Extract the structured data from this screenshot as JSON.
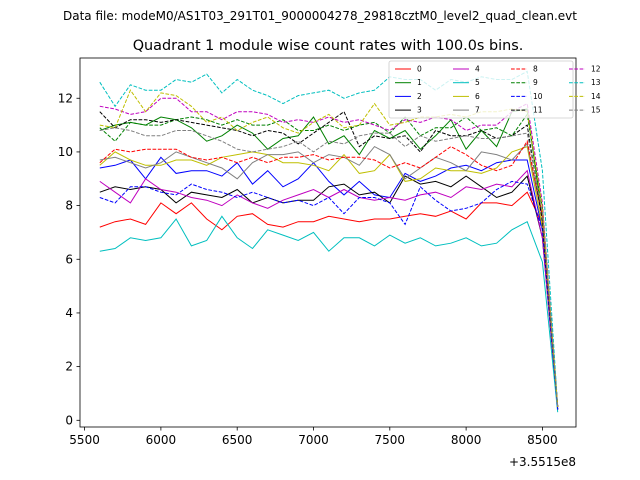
{
  "header": {
    "data_file": "Data file: modeM0/AS1T03_291T01_9000004278_29818cztM0_level2_quad_clean.evt"
  },
  "chart_data": {
    "type": "line",
    "title": "Quadrant 1 module wise count rates with 100.0s bins.",
    "xlabel": "",
    "ylabel": "",
    "x_offset_label": "+3.5515e8",
    "xlim": [
      5470,
      8720
    ],
    "ylim": [
      -0.25,
      13.5
    ],
    "xticks": [
      5500,
      6000,
      6500,
      7000,
      7500,
      8000,
      8500
    ],
    "yticks": [
      0,
      2,
      4,
      6,
      8,
      10,
      12
    ],
    "grid": false,
    "legend_position": "top-right",
    "x": [
      5600,
      5700,
      5800,
      5900,
      6000,
      6100,
      6200,
      6300,
      6400,
      6500,
      6600,
      6700,
      6800,
      6900,
      7000,
      7100,
      7200,
      7300,
      7400,
      7500,
      7600,
      7700,
      7800,
      7900,
      8000,
      8100,
      8200,
      8300,
      8400,
      8500,
      8600
    ],
    "series": [
      {
        "name": "0",
        "color": "#ff0000",
        "dash": "solid",
        "values": [
          7.2,
          7.4,
          7.5,
          7.3,
          8.1,
          7.7,
          8.1,
          7.5,
          7.1,
          7.6,
          7.7,
          7.3,
          7.2,
          7.4,
          7.4,
          7.6,
          7.5,
          7.4,
          7.5,
          7.5,
          7.6,
          7.7,
          7.6,
          7.8,
          7.5,
          8.1,
          8.1,
          8.0,
          8.5,
          7.3,
          0.4
        ]
      },
      {
        "name": "1",
        "color": "#008000",
        "dash": "solid",
        "values": [
          10.8,
          11.0,
          11.1,
          11.0,
          11.3,
          11.2,
          10.9,
          10.4,
          10.6,
          11.0,
          10.7,
          10.1,
          10.5,
          10.6,
          11.3,
          10.3,
          10.6,
          9.9,
          10.8,
          10.5,
          10.8,
          10.1,
          10.6,
          11.2,
          10.1,
          10.8,
          10.2,
          11.5,
          11.6,
          7.5,
          0.5
        ]
      },
      {
        "name": "2",
        "color": "#0000ff",
        "dash": "solid",
        "values": [
          9.4,
          9.5,
          9.7,
          9.0,
          9.8,
          9.2,
          9.3,
          9.3,
          9.1,
          9.6,
          8.8,
          9.3,
          8.7,
          9.0,
          9.6,
          8.9,
          8.4,
          8.9,
          8.4,
          8.3,
          9.2,
          8.9,
          9.1,
          9.4,
          9.5,
          9.3,
          9.6,
          9.7,
          9.7,
          7.1,
          0.4
        ]
      },
      {
        "name": "3",
        "color": "#000000",
        "dash": "solid",
        "values": [
          8.5,
          8.7,
          8.6,
          8.7,
          8.6,
          8.1,
          8.5,
          8.4,
          8.3,
          8.6,
          8.1,
          8.3,
          8.1,
          8.2,
          8.2,
          8.7,
          8.8,
          8.4,
          8.5,
          8.1,
          9.1,
          8.8,
          8.9,
          8.7,
          9.1,
          8.7,
          8.3,
          8.5,
          9.1,
          6.8,
          0.4
        ]
      },
      {
        "name": "4",
        "color": "#bf00bf",
        "dash": "solid",
        "values": [
          8.9,
          8.5,
          8.1,
          9.0,
          8.6,
          8.5,
          8.3,
          8.2,
          8.0,
          8.4,
          8.1,
          7.9,
          8.2,
          8.4,
          8.6,
          8.3,
          8.6,
          8.3,
          8.2,
          8.3,
          8.2,
          8.4,
          8.5,
          8.3,
          8.7,
          8.6,
          8.8,
          8.7,
          9.3,
          6.8,
          0.4
        ]
      },
      {
        "name": "5",
        "color": "#00bfbf",
        "dash": "solid",
        "values": [
          6.3,
          6.4,
          6.8,
          6.7,
          6.8,
          7.5,
          6.5,
          6.7,
          7.6,
          6.8,
          6.4,
          7.1,
          6.9,
          6.7,
          7.0,
          6.3,
          6.8,
          6.8,
          6.5,
          6.9,
          6.6,
          6.8,
          6.5,
          6.6,
          6.8,
          6.5,
          6.6,
          7.1,
          7.4,
          5.9,
          0.3
        ]
      },
      {
        "name": "6",
        "color": "#bfbf00",
        "dash": "solid",
        "values": [
          9.5,
          10.0,
          9.7,
          9.5,
          9.5,
          9.7,
          9.7,
          9.5,
          9.8,
          9.9,
          10.0,
          9.9,
          9.6,
          9.6,
          9.5,
          9.3,
          9.9,
          9.2,
          9.3,
          9.9,
          8.9,
          9.0,
          9.4,
          9.3,
          9.3,
          9.2,
          9.4,
          10.0,
          10.2,
          7.2,
          0.5
        ]
      },
      {
        "name": "7",
        "color": "#808080",
        "dash": "solid",
        "values": [
          9.7,
          9.8,
          9.6,
          9.4,
          9.6,
          10.0,
          9.8,
          9.6,
          9.4,
          9.0,
          9.6,
          9.9,
          9.9,
          10.0,
          9.6,
          9.9,
          9.8,
          9.5,
          10.2,
          9.9,
          9.0,
          9.4,
          9.8,
          9.6,
          9.3,
          10.0,
          9.9,
          9.7,
          10.3,
          7.5,
          0.5
        ]
      },
      {
        "name": "8",
        "color": "#ff0000",
        "dash": "dashed",
        "values": [
          9.6,
          10.1,
          10.0,
          10.1,
          10.1,
          10.1,
          9.8,
          9.7,
          9.8,
          9.6,
          9.8,
          9.6,
          9.8,
          9.8,
          9.9,
          9.7,
          9.8,
          9.8,
          9.7,
          9.4,
          9.6,
          9.4,
          9.8,
          10.2,
          9.9,
          9.5,
          9.3,
          9.5,
          10.4,
          7.6,
          0.5
        ]
      },
      {
        "name": "9",
        "color": "#008000",
        "dash": "dashed",
        "values": [
          10.9,
          10.4,
          11.1,
          11.0,
          11.0,
          11.2,
          11.3,
          11.2,
          11.0,
          11.2,
          11.0,
          11.0,
          11.2,
          10.8,
          10.8,
          11.0,
          10.8,
          11.0,
          11.1,
          10.7,
          11.3,
          10.6,
          10.9,
          10.9,
          11.3,
          10.8,
          10.9,
          10.6,
          11.4,
          7.9,
          0.5
        ]
      },
      {
        "name": "10",
        "color": "#0000ff",
        "dash": "dashed",
        "values": [
          8.3,
          8.1,
          8.7,
          8.7,
          8.5,
          8.4,
          8.8,
          8.6,
          8.5,
          8.3,
          8.5,
          8.3,
          8.1,
          8.2,
          8.0,
          8.3,
          7.7,
          8.3,
          8.3,
          8.1,
          7.3,
          8.7,
          8.2,
          7.8,
          7.9,
          8.1,
          8.6,
          8.9,
          8.8,
          7.1,
          0.4
        ]
      },
      {
        "name": "11",
        "color": "#000000",
        "dash": "dashed",
        "values": [
          11.5,
          10.9,
          11.2,
          11.2,
          11.1,
          11.2,
          11.1,
          11.0,
          10.9,
          10.8,
          10.6,
          10.8,
          10.7,
          10.3,
          10.7,
          11.1,
          11.5,
          10.2,
          10.6,
          10.5,
          10.6,
          10.0,
          10.8,
          10.6,
          10.6,
          10.8,
          10.5,
          10.6,
          11.0,
          7.4,
          0.5
        ]
      },
      {
        "name": "12",
        "color": "#bf00bf",
        "dash": "dashed",
        "values": [
          11.7,
          11.6,
          11.4,
          11.5,
          12.0,
          12.0,
          11.5,
          11.5,
          11.2,
          11.5,
          11.5,
          11.4,
          11.1,
          11.2,
          11.1,
          11.3,
          11.1,
          11.2,
          11.0,
          10.8,
          11.2,
          11.1,
          11.3,
          11.2,
          10.8,
          11.0,
          11.0,
          11.5,
          11.8,
          8.1,
          0.5
        ]
      },
      {
        "name": "13",
        "color": "#00bfbf",
        "dash": "dashed",
        "values": [
          12.6,
          11.7,
          12.5,
          12.3,
          12.3,
          12.7,
          12.6,
          12.9,
          12.2,
          12.7,
          12.3,
          12.1,
          11.8,
          12.1,
          12.2,
          12.3,
          12.0,
          12.2,
          12.3,
          12.8,
          12.7,
          12.7,
          12.3,
          12.7,
          12.6,
          12.8,
          12.7,
          12.7,
          13.0,
          9.3,
          0.5
        ]
      },
      {
        "name": "14",
        "color": "#bfbf00",
        "dash": "dashed",
        "values": [
          11.0,
          10.9,
          12.3,
          11.5,
          12.2,
          12.1,
          11.7,
          11.1,
          11.3,
          10.8,
          11.1,
          11.3,
          10.9,
          10.7,
          11.1,
          11.4,
          10.9,
          11.0,
          11.8,
          11.0,
          11.1,
          11.3,
          11.3,
          11.4,
          11.3,
          11.5,
          11.5,
          11.6,
          11.5,
          7.9,
          0.5
        ]
      },
      {
        "name": "15",
        "color": "#808080",
        "dash": "dashed",
        "values": [
          10.8,
          10.9,
          10.8,
          10.6,
          10.6,
          10.8,
          10.8,
          10.6,
          10.4,
          10.1,
          10.0,
          10.1,
          10.2,
          10.4,
          10.0,
          10.4,
          10.3,
          10.6,
          10.7,
          10.7,
          10.2,
          10.6,
          10.4,
          10.5,
          10.6,
          10.5,
          10.5,
          10.6,
          10.7,
          7.7,
          0.5
        ]
      }
    ]
  }
}
